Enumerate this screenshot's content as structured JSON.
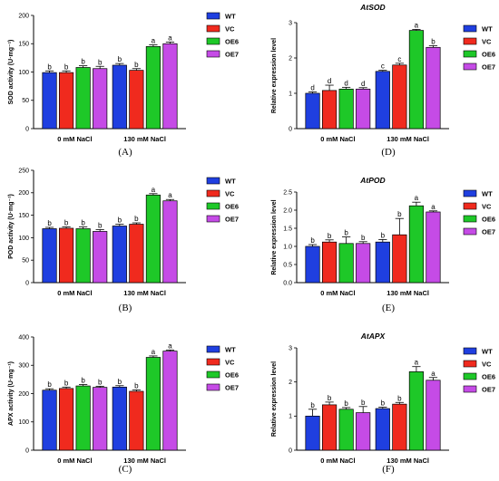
{
  "colors": {
    "WT": "#1f3fe0",
    "VC": "#f02a1e",
    "OE6": "#1ec828",
    "OE7": "#c54be6"
  },
  "legend": [
    "WT",
    "VC",
    "OE6",
    "OE7"
  ],
  "categories": [
    "0 mM NaCl",
    "130 mM NaCl"
  ],
  "chart_data": [
    {
      "id": "A",
      "panel_label": "(A)",
      "type": "bar",
      "title": "",
      "ylabel": "SOD activity (U·mg⁻¹)",
      "ylim": [
        0,
        200
      ],
      "yticks": [
        "0",
        "50",
        "100",
        "150",
        "200"
      ],
      "ytick_values": [
        0,
        50,
        100,
        150,
        200
      ],
      "categories": [
        "0 mM NaCl",
        "130 mM NaCl"
      ],
      "series": [
        {
          "name": "WT",
          "values": [
            99,
            112
          ],
          "errors": [
            3,
            3
          ],
          "letters": [
            "b",
            "b"
          ]
        },
        {
          "name": "VC",
          "values": [
            99,
            103
          ],
          "errors": [
            3,
            3
          ],
          "letters": [
            "b",
            "b"
          ]
        },
        {
          "name": "OE6",
          "values": [
            108,
            145
          ],
          "errors": [
            3,
            3
          ],
          "letters": [
            "b",
            "a"
          ]
        },
        {
          "name": "OE7",
          "values": [
            106,
            150
          ],
          "errors": [
            4,
            3
          ],
          "letters": [
            "b",
            "a"
          ]
        }
      ]
    },
    {
      "id": "D",
      "panel_label": "(D)",
      "type": "bar",
      "title": "AtSOD",
      "ylabel": "Relative expression level",
      "ylim": [
        0,
        3
      ],
      "yticks": [
        "0",
        "1",
        "2",
        "3"
      ],
      "ytick_values": [
        0,
        1,
        2,
        3
      ],
      "categories": [
        "0 mM NaCl",
        "130 mM NaCl"
      ],
      "series": [
        {
          "name": "WT",
          "values": [
            1.0,
            1.62
          ],
          "errors": [
            0.04,
            0.03
          ],
          "letters": [
            "d",
            "c"
          ]
        },
        {
          "name": "VC",
          "values": [
            1.08,
            1.8
          ],
          "errors": [
            0.15,
            0.05
          ],
          "letters": [
            "d",
            "c"
          ]
        },
        {
          "name": "OE6",
          "values": [
            1.12,
            2.78
          ],
          "errors": [
            0.05,
            0.03
          ],
          "letters": [
            "d",
            "a"
          ]
        },
        {
          "name": "OE7",
          "values": [
            1.12,
            2.3
          ],
          "errors": [
            0.04,
            0.05
          ],
          "letters": [
            "d",
            "b"
          ]
        }
      ]
    },
    {
      "id": "B",
      "panel_label": "(B)",
      "type": "bar",
      "title": "",
      "ylabel": "POD activity (U·mg⁻¹)",
      "ylim": [
        0,
        250
      ],
      "yticks": [
        "0",
        "50",
        "100",
        "150",
        "200",
        "250"
      ],
      "ytick_values": [
        0,
        50,
        100,
        150,
        200,
        250
      ],
      "categories": [
        "0 mM NaCl",
        "130 mM NaCl"
      ],
      "series": [
        {
          "name": "WT",
          "values": [
            120,
            126
          ],
          "errors": [
            3,
            4
          ],
          "letters": [
            "b",
            "b"
          ]
        },
        {
          "name": "VC",
          "values": [
            121,
            130
          ],
          "errors": [
            3,
            3
          ],
          "letters": [
            "b",
            "b"
          ]
        },
        {
          "name": "OE6",
          "values": [
            120,
            195
          ],
          "errors": [
            4,
            3
          ],
          "letters": [
            "b",
            "a"
          ]
        },
        {
          "name": "OE7",
          "values": [
            114,
            182
          ],
          "errors": [
            4,
            3
          ],
          "letters": [
            "b",
            "a"
          ]
        }
      ]
    },
    {
      "id": "E",
      "panel_label": "(E)",
      "type": "bar",
      "title": "AtPOD",
      "ylabel": "Relative expression level",
      "ylim": [
        0,
        2.5
      ],
      "yticks": [
        "0.0",
        "0.5",
        "1.0",
        "1.5",
        "2.0",
        "2.5"
      ],
      "ytick_values": [
        0,
        0.5,
        1,
        1.5,
        2,
        2.5
      ],
      "categories": [
        "0 mM NaCl",
        "130 mM NaCl"
      ],
      "series": [
        {
          "name": "WT",
          "values": [
            1.0,
            1.12
          ],
          "errors": [
            0.05,
            0.07
          ],
          "letters": [
            "b",
            "b"
          ]
        },
        {
          "name": "VC",
          "values": [
            1.12,
            1.32
          ],
          "errors": [
            0.06,
            0.45
          ],
          "letters": [
            "b",
            "b"
          ]
        },
        {
          "name": "OE6",
          "values": [
            1.08,
            2.12
          ],
          "errors": [
            0.18,
            0.1
          ],
          "letters": [
            "b",
            "a"
          ]
        },
        {
          "name": "OE7",
          "values": [
            1.08,
            1.95
          ],
          "errors": [
            0.05,
            0.03
          ],
          "letters": [
            "b",
            "a"
          ]
        }
      ]
    },
    {
      "id": "C",
      "panel_label": "(C)",
      "type": "bar",
      "title": "",
      "ylabel": "APX activity (U·mg⁻¹)",
      "ylim": [
        0,
        400
      ],
      "yticks": [
        "0",
        "100",
        "200",
        "300",
        "400"
      ],
      "ytick_values": [
        0,
        100,
        200,
        300,
        400
      ],
      "categories": [
        "0 mM NaCl",
        "130 mM NaCl"
      ],
      "series": [
        {
          "name": "WT",
          "values": [
            212,
            223
          ],
          "errors": [
            5,
            5
          ],
          "letters": [
            "b",
            "b"
          ]
        },
        {
          "name": "VC",
          "values": [
            218,
            208
          ],
          "errors": [
            5,
            5
          ],
          "letters": [
            "b",
            "b"
          ]
        },
        {
          "name": "OE6",
          "values": [
            227,
            328
          ],
          "errors": [
            5,
            5
          ],
          "letters": [
            "b",
            "a"
          ]
        },
        {
          "name": "OE7",
          "values": [
            222,
            350
          ],
          "errors": [
            4,
            4
          ],
          "letters": [
            "b",
            "a"
          ]
        }
      ]
    },
    {
      "id": "F",
      "panel_label": "(F)",
      "type": "bar",
      "title": "AtAPX",
      "ylabel": "Relative expression level",
      "ylim": [
        0,
        3
      ],
      "yticks": [
        "0",
        "1",
        "2",
        "3"
      ],
      "ytick_values": [
        0,
        1,
        2,
        3
      ],
      "categories": [
        "0 mM NaCl",
        "130 mM NaCl"
      ],
      "series": [
        {
          "name": "WT",
          "values": [
            1.0,
            1.22
          ],
          "errors": [
            0.2,
            0.04
          ],
          "letters": [
            "b",
            "b"
          ]
        },
        {
          "name": "VC",
          "values": [
            1.33,
            1.35
          ],
          "errors": [
            0.08,
            0.05
          ],
          "letters": [
            "b",
            "b"
          ]
        },
        {
          "name": "OE6",
          "values": [
            1.2,
            2.3
          ],
          "errors": [
            0.05,
            0.15
          ],
          "letters": [
            "b",
            "a"
          ]
        },
        {
          "name": "OE7",
          "values": [
            1.1,
            2.05
          ],
          "errors": [
            0.18,
            0.08
          ],
          "letters": [
            "b",
            "a"
          ]
        }
      ]
    }
  ]
}
